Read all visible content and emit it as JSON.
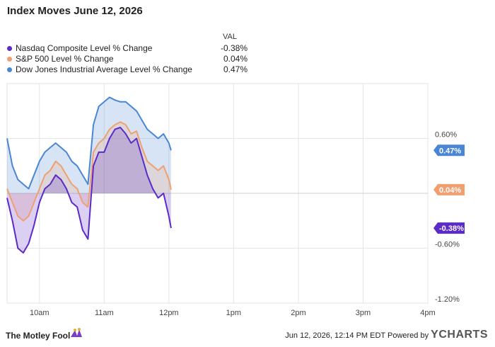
{
  "title": "Index Moves June 12, 2026",
  "legend": {
    "value_header": "VAL",
    "items": [
      {
        "label": "Nasdaq Composite Level % Change",
        "value": "-0.38%",
        "color": "#5b2bc7"
      },
      {
        "label": "S&P 500 Level % Change",
        "value": "0.04%",
        "color": "#f0a070"
      },
      {
        "label": "Dow Jones Industrial Average Level % Change",
        "value": "0.47%",
        "color": "#4a86d4"
      }
    ]
  },
  "footer": {
    "brand": "The Motley Fool",
    "timestamp": "Jun 12, 2026, 12:14 PM EDT Powered by",
    "provider": "YCHARTS"
  },
  "chart_data": {
    "type": "line",
    "title": "Index Moves June 12, 2026",
    "xlabel": "",
    "ylabel": "",
    "x_ticks": [
      "10am",
      "11am",
      "12pm",
      "1pm",
      "2pm",
      "3pm",
      "4pm"
    ],
    "y_ticks": [
      "0.60%",
      "-0.60%",
      "-1.20%"
    ],
    "xlim": [
      "9:30",
      "16:00"
    ],
    "ylim": [
      -1.2,
      1.2
    ],
    "grid": true,
    "legend_position": "top-left",
    "x": [
      "9:30",
      "9:35",
      "9:40",
      "9:45",
      "9:50",
      "9:55",
      "10:00",
      "10:05",
      "10:10",
      "10:15",
      "10:20",
      "10:25",
      "10:30",
      "10:35",
      "10:40",
      "10:45",
      "10:50",
      "10:55",
      "11:00",
      "11:05",
      "11:10",
      "11:15",
      "11:20",
      "11:25",
      "11:30",
      "11:35",
      "11:40",
      "11:45",
      "11:50",
      "11:55",
      "12:00",
      "12:02"
    ],
    "series": [
      {
        "name": "Nasdaq Composite Level % Change",
        "color": "#5b2bc7",
        "end_label": "-0.38%",
        "values": [
          -0.05,
          -0.3,
          -0.6,
          -0.65,
          -0.55,
          -0.35,
          -0.1,
          0.05,
          0.1,
          0.2,
          0.15,
          0.05,
          -0.1,
          -0.15,
          -0.4,
          -0.5,
          0.3,
          0.45,
          0.45,
          0.6,
          0.7,
          0.72,
          0.65,
          0.55,
          0.6,
          0.4,
          0.2,
          0.05,
          -0.05,
          0.0,
          -0.25,
          -0.38
        ]
      },
      {
        "name": "S&P 500 Level % Change",
        "color": "#f0a070",
        "end_label": "0.04%",
        "values": [
          0.05,
          -0.1,
          -0.25,
          -0.3,
          -0.25,
          -0.1,
          0.05,
          0.2,
          0.25,
          0.35,
          0.3,
          0.2,
          0.1,
          0.05,
          -0.1,
          -0.15,
          0.45,
          0.55,
          0.6,
          0.7,
          0.75,
          0.78,
          0.75,
          0.65,
          0.68,
          0.5,
          0.35,
          0.3,
          0.25,
          0.3,
          0.15,
          0.04
        ]
      },
      {
        "name": "Dow Jones Industrial Average Level % Change",
        "color": "#4a86d4",
        "end_label": "0.47%",
        "values": [
          0.6,
          0.3,
          0.15,
          0.1,
          0.05,
          0.2,
          0.35,
          0.45,
          0.5,
          0.55,
          0.5,
          0.45,
          0.35,
          0.3,
          0.2,
          0.1,
          0.75,
          0.95,
          1.0,
          1.05,
          1.02,
          1.0,
          1.0,
          0.95,
          0.9,
          0.8,
          0.7,
          0.65,
          0.6,
          0.65,
          0.55,
          0.47
        ]
      }
    ]
  }
}
